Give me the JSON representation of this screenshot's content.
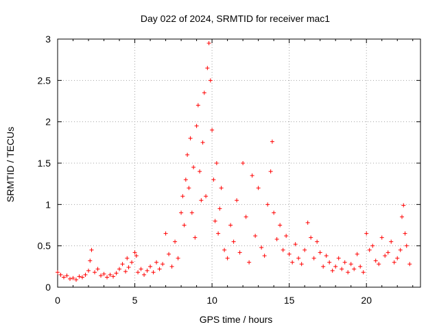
{
  "chart_data": {
    "type": "scatter",
    "title": "Day 022 of 2024, SRMTID for receiver mac1",
    "xlabel": "GPS time / hours",
    "ylabel": "SRMTID / TECUs",
    "xlim": [
      0,
      23.5
    ],
    "ylim": [
      0,
      3
    ],
    "xticks": [
      0,
      5,
      10,
      15,
      20
    ],
    "xtick_labels": [
      "0",
      "5",
      "10",
      "15",
      "20"
    ],
    "yticks": [
      0,
      0.5,
      1,
      1.5,
      2,
      2.5,
      3
    ],
    "ytick_labels": [
      "0",
      "0.5",
      "1",
      "1.5",
      "2",
      "2.5",
      "3"
    ],
    "grid": true,
    "marker": "+",
    "color": "#ff0000",
    "series": [
      {
        "name": "SRMTID",
        "x": [
          0.0,
          0.2,
          0.4,
          0.6,
          0.8,
          1.0,
          1.2,
          1.4,
          1.6,
          1.8,
          2.0,
          2.1,
          2.2,
          2.4,
          2.6,
          2.8,
          3.0,
          3.2,
          3.4,
          3.6,
          3.8,
          4.0,
          4.2,
          4.4,
          4.5,
          4.6,
          4.8,
          5.0,
          5.1,
          5.2,
          5.4,
          5.6,
          5.8,
          6.0,
          6.2,
          6.4,
          6.6,
          6.8,
          7.0,
          7.2,
          7.4,
          7.6,
          7.8,
          8.0,
          8.1,
          8.2,
          8.3,
          8.4,
          8.5,
          8.6,
          8.7,
          8.8,
          8.9,
          9.0,
          9.1,
          9.2,
          9.3,
          9.4,
          9.5,
          9.6,
          9.7,
          9.8,
          9.9,
          10.0,
          10.1,
          10.2,
          10.3,
          10.4,
          10.5,
          10.6,
          10.8,
          11.0,
          11.2,
          11.4,
          11.6,
          11.8,
          12.0,
          12.2,
          12.4,
          12.6,
          12.8,
          13.0,
          13.2,
          13.4,
          13.6,
          13.8,
          13.9,
          14.0,
          14.2,
          14.4,
          14.6,
          14.8,
          15.0,
          15.2,
          15.4,
          15.6,
          15.8,
          16.0,
          16.2,
          16.4,
          16.6,
          16.8,
          17.0,
          17.2,
          17.4,
          17.6,
          17.8,
          18.0,
          18.2,
          18.4,
          18.6,
          18.8,
          19.0,
          19.2,
          19.4,
          19.6,
          19.8,
          20.0,
          20.2,
          20.4,
          20.6,
          20.8,
          21.0,
          21.2,
          21.4,
          21.6,
          21.8,
          22.0,
          22.2,
          22.3,
          22.4,
          22.5,
          22.6,
          22.8
        ],
        "y": [
          0.18,
          0.15,
          0.12,
          0.14,
          0.1,
          0.11,
          0.09,
          0.13,
          0.12,
          0.15,
          0.2,
          0.32,
          0.45,
          0.18,
          0.22,
          0.14,
          0.16,
          0.12,
          0.15,
          0.13,
          0.17,
          0.22,
          0.28,
          0.19,
          0.35,
          0.24,
          0.3,
          0.42,
          0.38,
          0.18,
          0.22,
          0.15,
          0.2,
          0.25,
          0.18,
          0.3,
          0.22,
          0.28,
          0.65,
          0.4,
          0.25,
          0.55,
          0.35,
          0.9,
          1.1,
          0.75,
          1.3,
          1.6,
          1.2,
          1.8,
          0.9,
          1.45,
          0.6,
          1.95,
          2.2,
          1.4,
          1.05,
          1.75,
          2.35,
          1.1,
          2.65,
          2.95,
          2.5,
          1.9,
          1.3,
          0.8,
          1.5,
          0.65,
          0.95,
          1.2,
          0.45,
          0.35,
          0.75,
          0.55,
          1.05,
          0.42,
          1.5,
          0.85,
          0.3,
          1.35,
          0.62,
          1.2,
          0.48,
          0.38,
          1.0,
          1.4,
          1.76,
          0.9,
          0.58,
          0.75,
          0.45,
          0.62,
          0.4,
          0.3,
          0.52,
          0.35,
          0.28,
          0.45,
          0.78,
          0.6,
          0.35,
          0.55,
          0.42,
          0.25,
          0.38,
          0.3,
          0.2,
          0.25,
          0.35,
          0.22,
          0.3,
          0.18,
          0.28,
          0.22,
          0.4,
          0.25,
          0.18,
          0.65,
          0.45,
          0.5,
          0.32,
          0.28,
          0.6,
          0.38,
          0.42,
          0.55,
          0.3,
          0.35,
          0.45,
          0.85,
          0.99,
          0.65,
          0.5,
          0.28
        ]
      }
    ]
  }
}
